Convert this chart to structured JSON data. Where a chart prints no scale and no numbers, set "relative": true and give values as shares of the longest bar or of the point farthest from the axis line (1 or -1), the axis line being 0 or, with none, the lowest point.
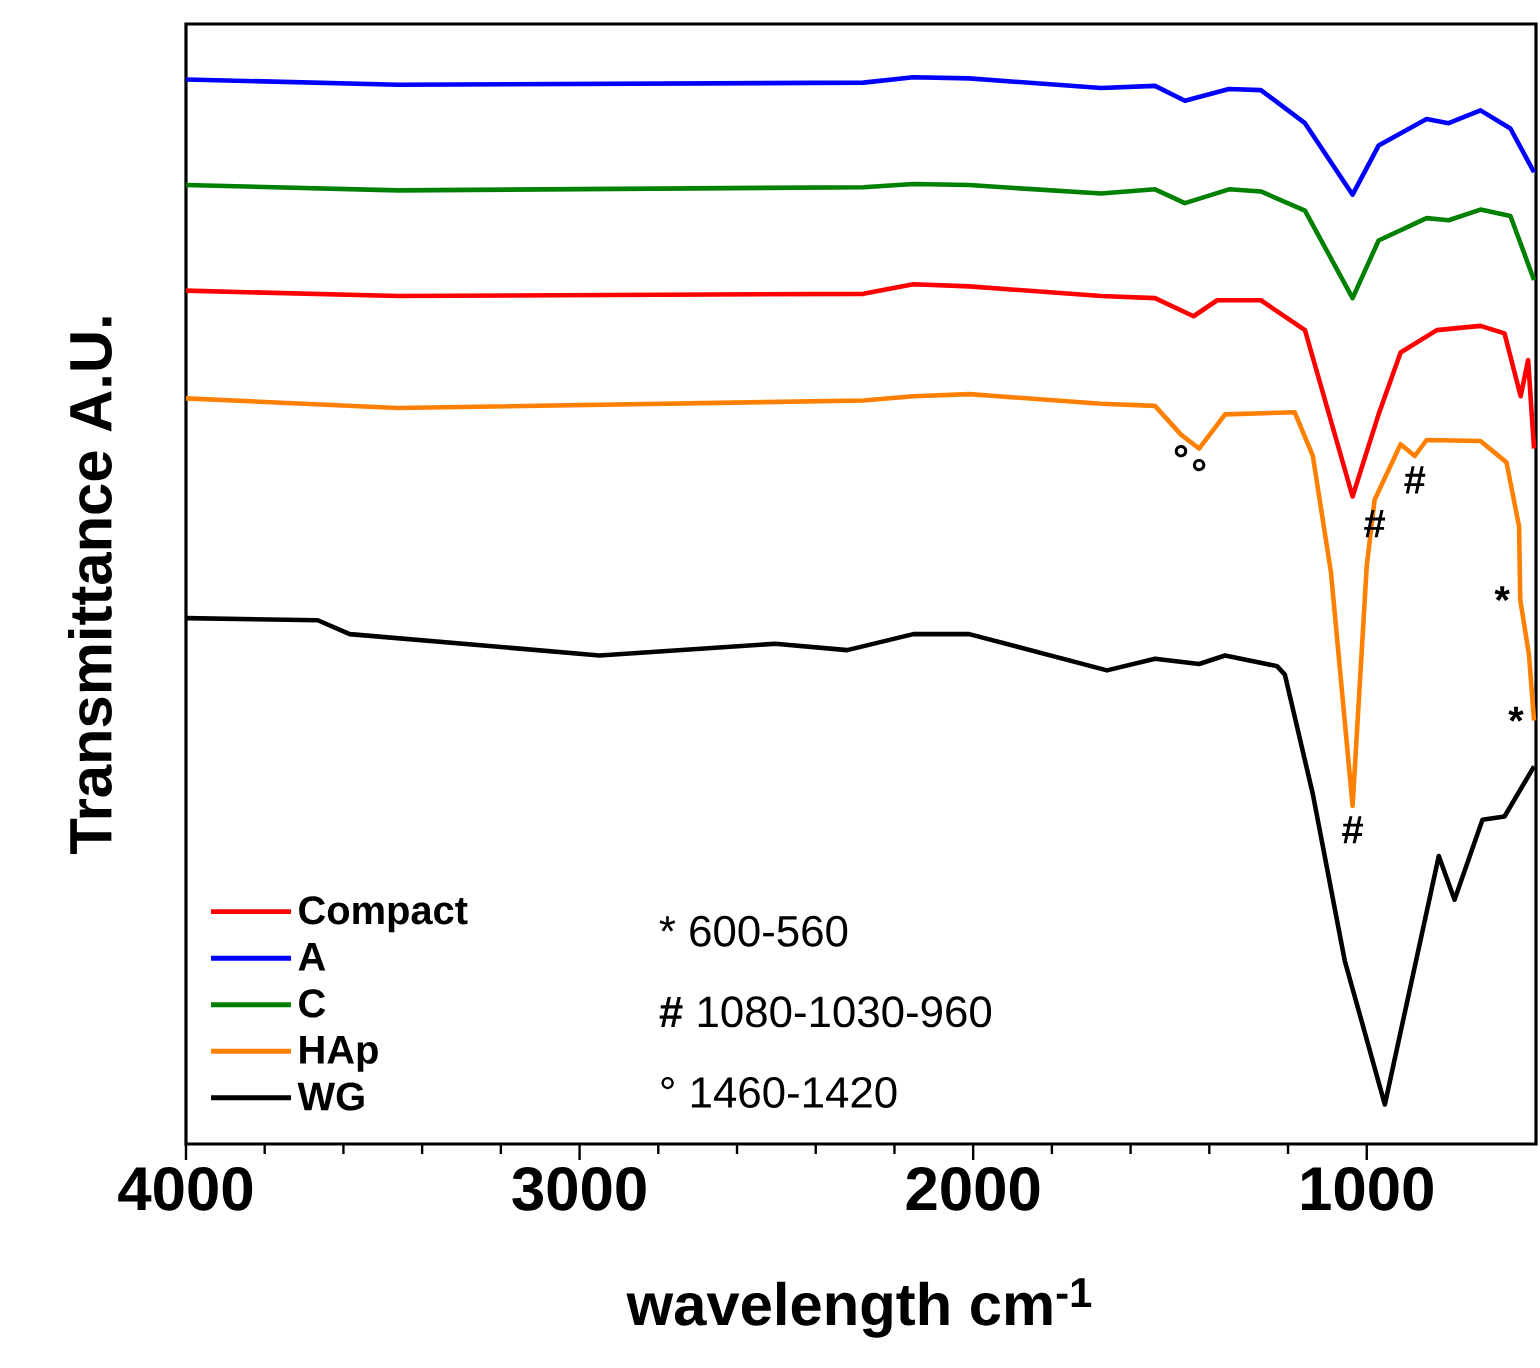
{
  "chart_data": {
    "type": "line",
    "xlabel": "wavelength cm$^{-1}$",
    "ylabel": "Transmittance A.U.",
    "relative": true,
    "xlim": [
      4000,
      570
    ],
    "xticks": [
      4000,
      3000,
      2000,
      1000
    ],
    "legend": "bottom left",
    "series": [
      {
        "name": "Compact",
        "color": "#ff0000",
        "x": [
          4000,
          3462,
          2279,
          2152,
          2010,
          1675,
          1538,
          1440,
          1380,
          1269,
          1157,
          1036,
          970,
          914,
          822,
          711,
          650,
          609,
          590,
          575
        ],
        "values": [
          0.8,
          0.795,
          0.797,
          0.806,
          0.804,
          0.795,
          0.793,
          0.776,
          0.791,
          0.791,
          0.763,
          0.607,
          0.684,
          0.742,
          0.763,
          0.767,
          0.76,
          0.701,
          0.735,
          0.652
        ]
      },
      {
        "name": "A",
        "color": "#0000ff",
        "x": [
          4000,
          3462,
          2279,
          2152,
          2010,
          1675,
          1538,
          1462,
          1350,
          1269,
          1157,
          1036,
          970,
          848,
          792,
          711,
          635,
          575
        ],
        "values": [
          0.998,
          0.993,
          0.995,
          1.0,
          0.999,
          0.99,
          0.992,
          0.978,
          0.989,
          0.988,
          0.957,
          0.89,
          0.936,
          0.961,
          0.957,
          0.969,
          0.952,
          0.911
        ]
      },
      {
        "name": "C",
        "color": "#008000",
        "x": [
          4000,
          3462,
          2279,
          2152,
          2010,
          1675,
          1538,
          1462,
          1350,
          1269,
          1157,
          1036,
          970,
          848,
          792,
          711,
          635,
          575
        ],
        "values": [
          0.899,
          0.894,
          0.897,
          0.9,
          0.899,
          0.891,
          0.895,
          0.882,
          0.895,
          0.893,
          0.875,
          0.793,
          0.847,
          0.868,
          0.866,
          0.876,
          0.87,
          0.81
        ]
      },
      {
        "name": "HAp",
        "color": "#ff8000",
        "x": [
          4000,
          3462,
          2279,
          2152,
          2010,
          1675,
          1538,
          1472,
          1426,
          1360,
          1183,
          1137,
          1091,
          1036,
          1000,
          980,
          914,
          878,
          848,
          711,
          645,
          613,
          610,
          588,
          575
        ],
        "values": [
          0.699,
          0.69,
          0.697,
          0.701,
          0.703,
          0.694,
          0.692,
          0.665,
          0.652,
          0.684,
          0.686,
          0.645,
          0.536,
          0.317,
          0.542,
          0.604,
          0.656,
          0.645,
          0.66,
          0.659,
          0.639,
          0.579,
          0.51,
          0.459,
          0.397
        ]
      },
      {
        "name": "WG",
        "color": "#000000",
        "x": [
          4000,
          3665,
          3584,
          2949,
          2503,
          2320,
          2152,
          2010,
          1660,
          1538,
          1426,
          1360,
          1228,
          1208,
          1137,
          1056,
          954,
          900,
          817,
          777,
          706,
          650,
          575
        ],
        "values": [
          0.493,
          0.491,
          0.478,
          0.458,
          0.469,
          0.463,
          0.478,
          0.478,
          0.444,
          0.455,
          0.45,
          0.458,
          0.448,
          0.44,
          0.328,
          0.172,
          0.037,
          0.129,
          0.27,
          0.229,
          0.304,
          0.307,
          0.354
        ]
      }
    ],
    "annotations": [
      "* 600-560",
      "**#** 1080-1030-960",
      "° 1460-1420",
      {
        "text": "°",
        "x": 1472,
        "y": 0.665
      },
      {
        "text": "°",
        "x": 1426,
        "y": 0.652
      },
      {
        "text": "#",
        "x": 878,
        "y": 0.645
      },
      {
        "text": "#",
        "x": 980,
        "y": 0.604
      },
      {
        "text": "#",
        "x": 1036,
        "y": 0.317
      },
      {
        "text": "*",
        "x": 610,
        "y": 0.51
      },
      {
        "text": "*",
        "x": 575,
        "y": 0.397
      }
    ]
  }
}
